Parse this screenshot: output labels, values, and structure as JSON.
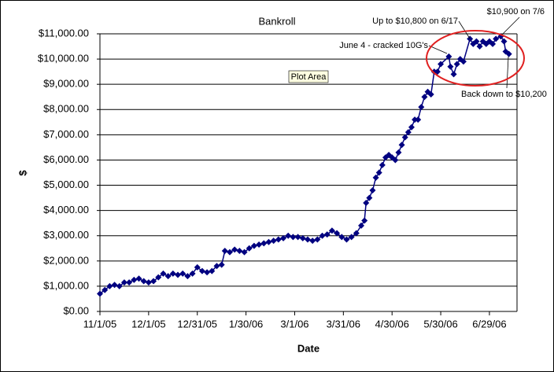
{
  "chart_data": {
    "type": "line",
    "title": "Bankroll",
    "x_label": "Date",
    "y_label": "$",
    "x": [
      "11/1/05",
      "11/4/05",
      "11/7/05",
      "11/10/05",
      "11/13/05",
      "11/16/05",
      "11/19/05",
      "11/22/05",
      "11/25/05",
      "11/28/05",
      "12/1/05",
      "12/4/05",
      "12/7/05",
      "12/10/05",
      "12/13/05",
      "12/16/05",
      "12/19/05",
      "12/22/05",
      "12/25/05",
      "12/28/05",
      "12/31/05",
      "1/3/06",
      "1/6/06",
      "1/9/06",
      "1/12/06",
      "1/15/06",
      "1/17/06",
      "1/20/06",
      "1/23/06",
      "1/26/06",
      "1/29/06",
      "2/1/06",
      "2/4/06",
      "2/7/06",
      "2/10/06",
      "2/13/06",
      "2/16/06",
      "2/19/06",
      "2/22/06",
      "2/25/06",
      "2/28/06",
      "3/3/06",
      "3/6/06",
      "3/9/06",
      "3/12/06",
      "3/15/06",
      "3/18/06",
      "3/21/06",
      "3/24/06",
      "3/27/06",
      "3/30/06",
      "4/2/06",
      "4/5/06",
      "4/8/06",
      "4/11/06",
      "4/13/06",
      "4/14/06",
      "4/16/06",
      "4/18/06",
      "4/20/06",
      "4/22/06",
      "4/24/06",
      "4/26/06",
      "4/28/06",
      "4/30/06",
      "5/2/06",
      "5/4/06",
      "5/6/06",
      "5/8/06",
      "5/10/06",
      "5/12/06",
      "5/14/06",
      "5/16/06",
      "5/18/06",
      "5/20/06",
      "5/22/06",
      "5/24/06",
      "5/26/06",
      "5/28/06",
      "5/30/06",
      "6/4/06",
      "6/5/06",
      "6/7/06",
      "6/9/06",
      "6/11/06",
      "6/13/06",
      "6/17/06",
      "6/19/06",
      "6/21/06",
      "6/23/06",
      "6/25/06",
      "6/27/06",
      "6/29/06",
      "7/1/06",
      "7/3/06",
      "7/6/06",
      "7/8/06",
      "7/9/06",
      "7/11/06"
    ],
    "series": [
      {
        "color": "#000080",
        "values": [
          700,
          850,
          1000,
          1050,
          1000,
          1150,
          1150,
          1250,
          1300,
          1200,
          1150,
          1200,
          1350,
          1500,
          1400,
          1500,
          1450,
          1500,
          1400,
          1500,
          1750,
          1600,
          1550,
          1600,
          1800,
          1850,
          2400,
          2350,
          2450,
          2400,
          2350,
          2500,
          2600,
          2650,
          2700,
          2750,
          2800,
          2850,
          2900,
          3000,
          2950,
          2950,
          2900,
          2850,
          2800,
          2850,
          3000,
          3050,
          3200,
          3100,
          2950,
          2850,
          2950,
          3100,
          3400,
          3600,
          4300,
          4500,
          4800,
          5300,
          5500,
          5800,
          6100,
          6200,
          6100,
          6000,
          6300,
          6600,
          6900,
          7100,
          7300,
          7600,
          7600,
          8100,
          8500,
          8700,
          8600,
          9500,
          9500,
          9800,
          10100,
          9700,
          9400,
          9800,
          10000,
          9900,
          10800,
          10600,
          10700,
          10500,
          10700,
          10600,
          10700,
          10600,
          10800,
          10900,
          10700,
          10300,
          10200
        ]
      }
    ],
    "xlim": [
      "11/1/05",
      "7/16/06"
    ],
    "xticks": [
      "11/1/05",
      "12/1/05",
      "12/31/05",
      "1/30/06",
      "3/1/06",
      "3/31/06",
      "4/30/06",
      "5/30/06",
      "6/29/06"
    ],
    "ylim": [
      0,
      11000
    ],
    "yticks": [
      {
        "value": 0,
        "label": "$0.00"
      },
      {
        "value": 1000,
        "label": "$1,000.00"
      },
      {
        "value": 2000,
        "label": "$2,000.00"
      },
      {
        "value": 3000,
        "label": "$3,000.00"
      },
      {
        "value": 4000,
        "label": "$4,000.00"
      },
      {
        "value": 5000,
        "label": "$5,000.00"
      },
      {
        "value": 6000,
        "label": "$6,000.00"
      },
      {
        "value": 7000,
        "label": "$7,000.00"
      },
      {
        "value": 8000,
        "label": "$8,000.00"
      },
      {
        "value": 9000,
        "label": "$9,000.00"
      },
      {
        "value": 10000,
        "label": "$10,000.00"
      },
      {
        "value": 11000,
        "label": "$11,000.00"
      }
    ],
    "grid": true,
    "annotations": [
      "June 4 - cracked 10G's",
      "Up to $10,800 on 6/17",
      "$10,900 on 7/6",
      "Back down to $10,200"
    ],
    "tooltip": "Plot Area"
  }
}
